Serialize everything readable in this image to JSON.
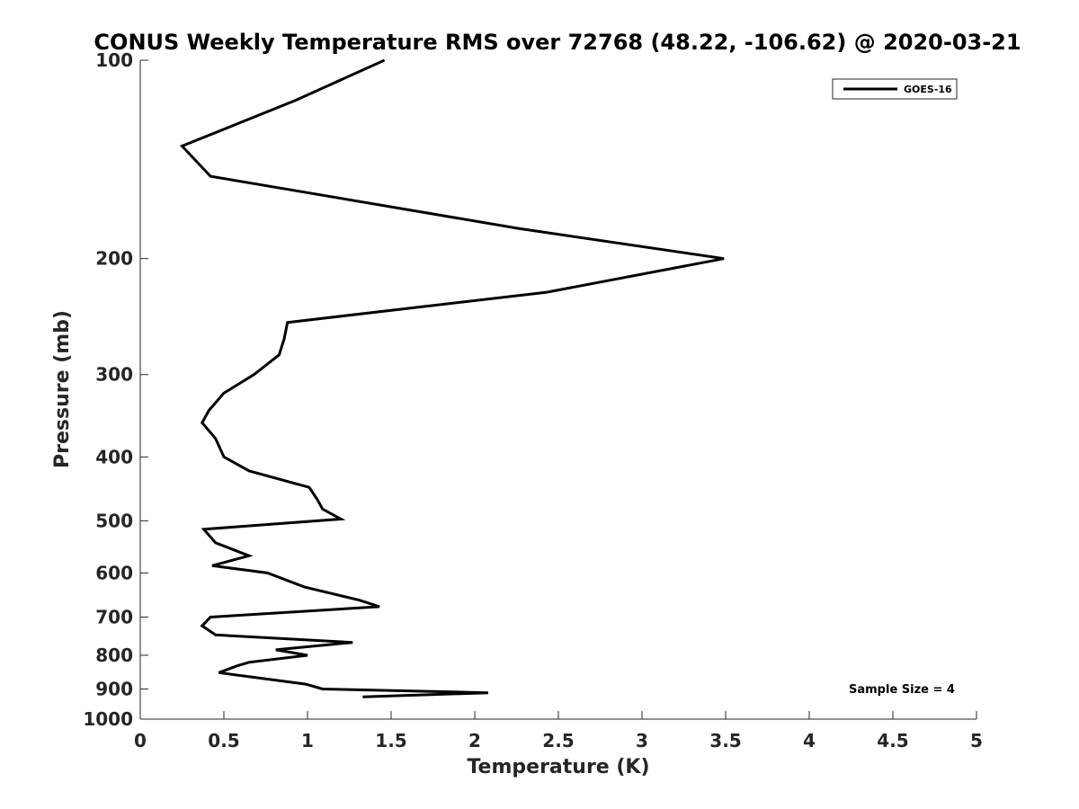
{
  "chart_data": {
    "type": "line",
    "title": "CONUS Weekly Temperature RMS over 72768 (48.22, -106.62) @ 2020-03-21",
    "xlabel": "Temperature (K)",
    "ylabel": "Pressure (mb)",
    "xlim": [
      0,
      5
    ],
    "ylim": [
      1000,
      100
    ],
    "yscale": "log",
    "x_ticks": [
      "0",
      "0.5",
      "1",
      "1.5",
      "2",
      "2.5",
      "3",
      "3.5",
      "4",
      "4.5",
      "5"
    ],
    "y_ticks": [
      "100",
      "200",
      "300",
      "400",
      "500",
      "600",
      "700",
      "800",
      "900",
      "1000"
    ],
    "grid": false,
    "legend_position": "top-right",
    "annotation": "Sample Size = 4",
    "series": [
      {
        "name": "GOES-16",
        "color": "#000000",
        "points": [
          [
            1.46,
            100
          ],
          [
            0.93,
            115
          ],
          [
            0.25,
            135
          ],
          [
            0.42,
            150
          ],
          [
            2.26,
            180
          ],
          [
            3.49,
            200
          ],
          [
            2.43,
            225
          ],
          [
            0.88,
            250
          ],
          [
            0.86,
            265
          ],
          [
            0.83,
            280
          ],
          [
            0.68,
            300
          ],
          [
            0.5,
            320
          ],
          [
            0.41,
            340
          ],
          [
            0.37,
            355
          ],
          [
            0.45,
            375
          ],
          [
            0.5,
            400
          ],
          [
            0.65,
            420
          ],
          [
            1.01,
            445
          ],
          [
            1.06,
            465
          ],
          [
            1.09,
            480
          ],
          [
            1.2,
            497
          ],
          [
            0.38,
            515
          ],
          [
            0.45,
            540
          ],
          [
            0.65,
            565
          ],
          [
            0.43,
            585
          ],
          [
            0.76,
            600
          ],
          [
            0.98,
            630
          ],
          [
            1.31,
            660
          ],
          [
            1.43,
            675
          ],
          [
            0.42,
            700
          ],
          [
            0.37,
            722
          ],
          [
            0.45,
            745
          ],
          [
            1.27,
            765
          ],
          [
            0.81,
            785
          ],
          [
            1.0,
            800
          ],
          [
            0.65,
            820
          ],
          [
            0.58,
            830
          ],
          [
            0.47,
            850
          ],
          [
            0.99,
            885
          ],
          [
            1.09,
            900
          ],
          [
            2.08,
            912
          ],
          [
            1.33,
            925
          ]
        ]
      }
    ]
  }
}
